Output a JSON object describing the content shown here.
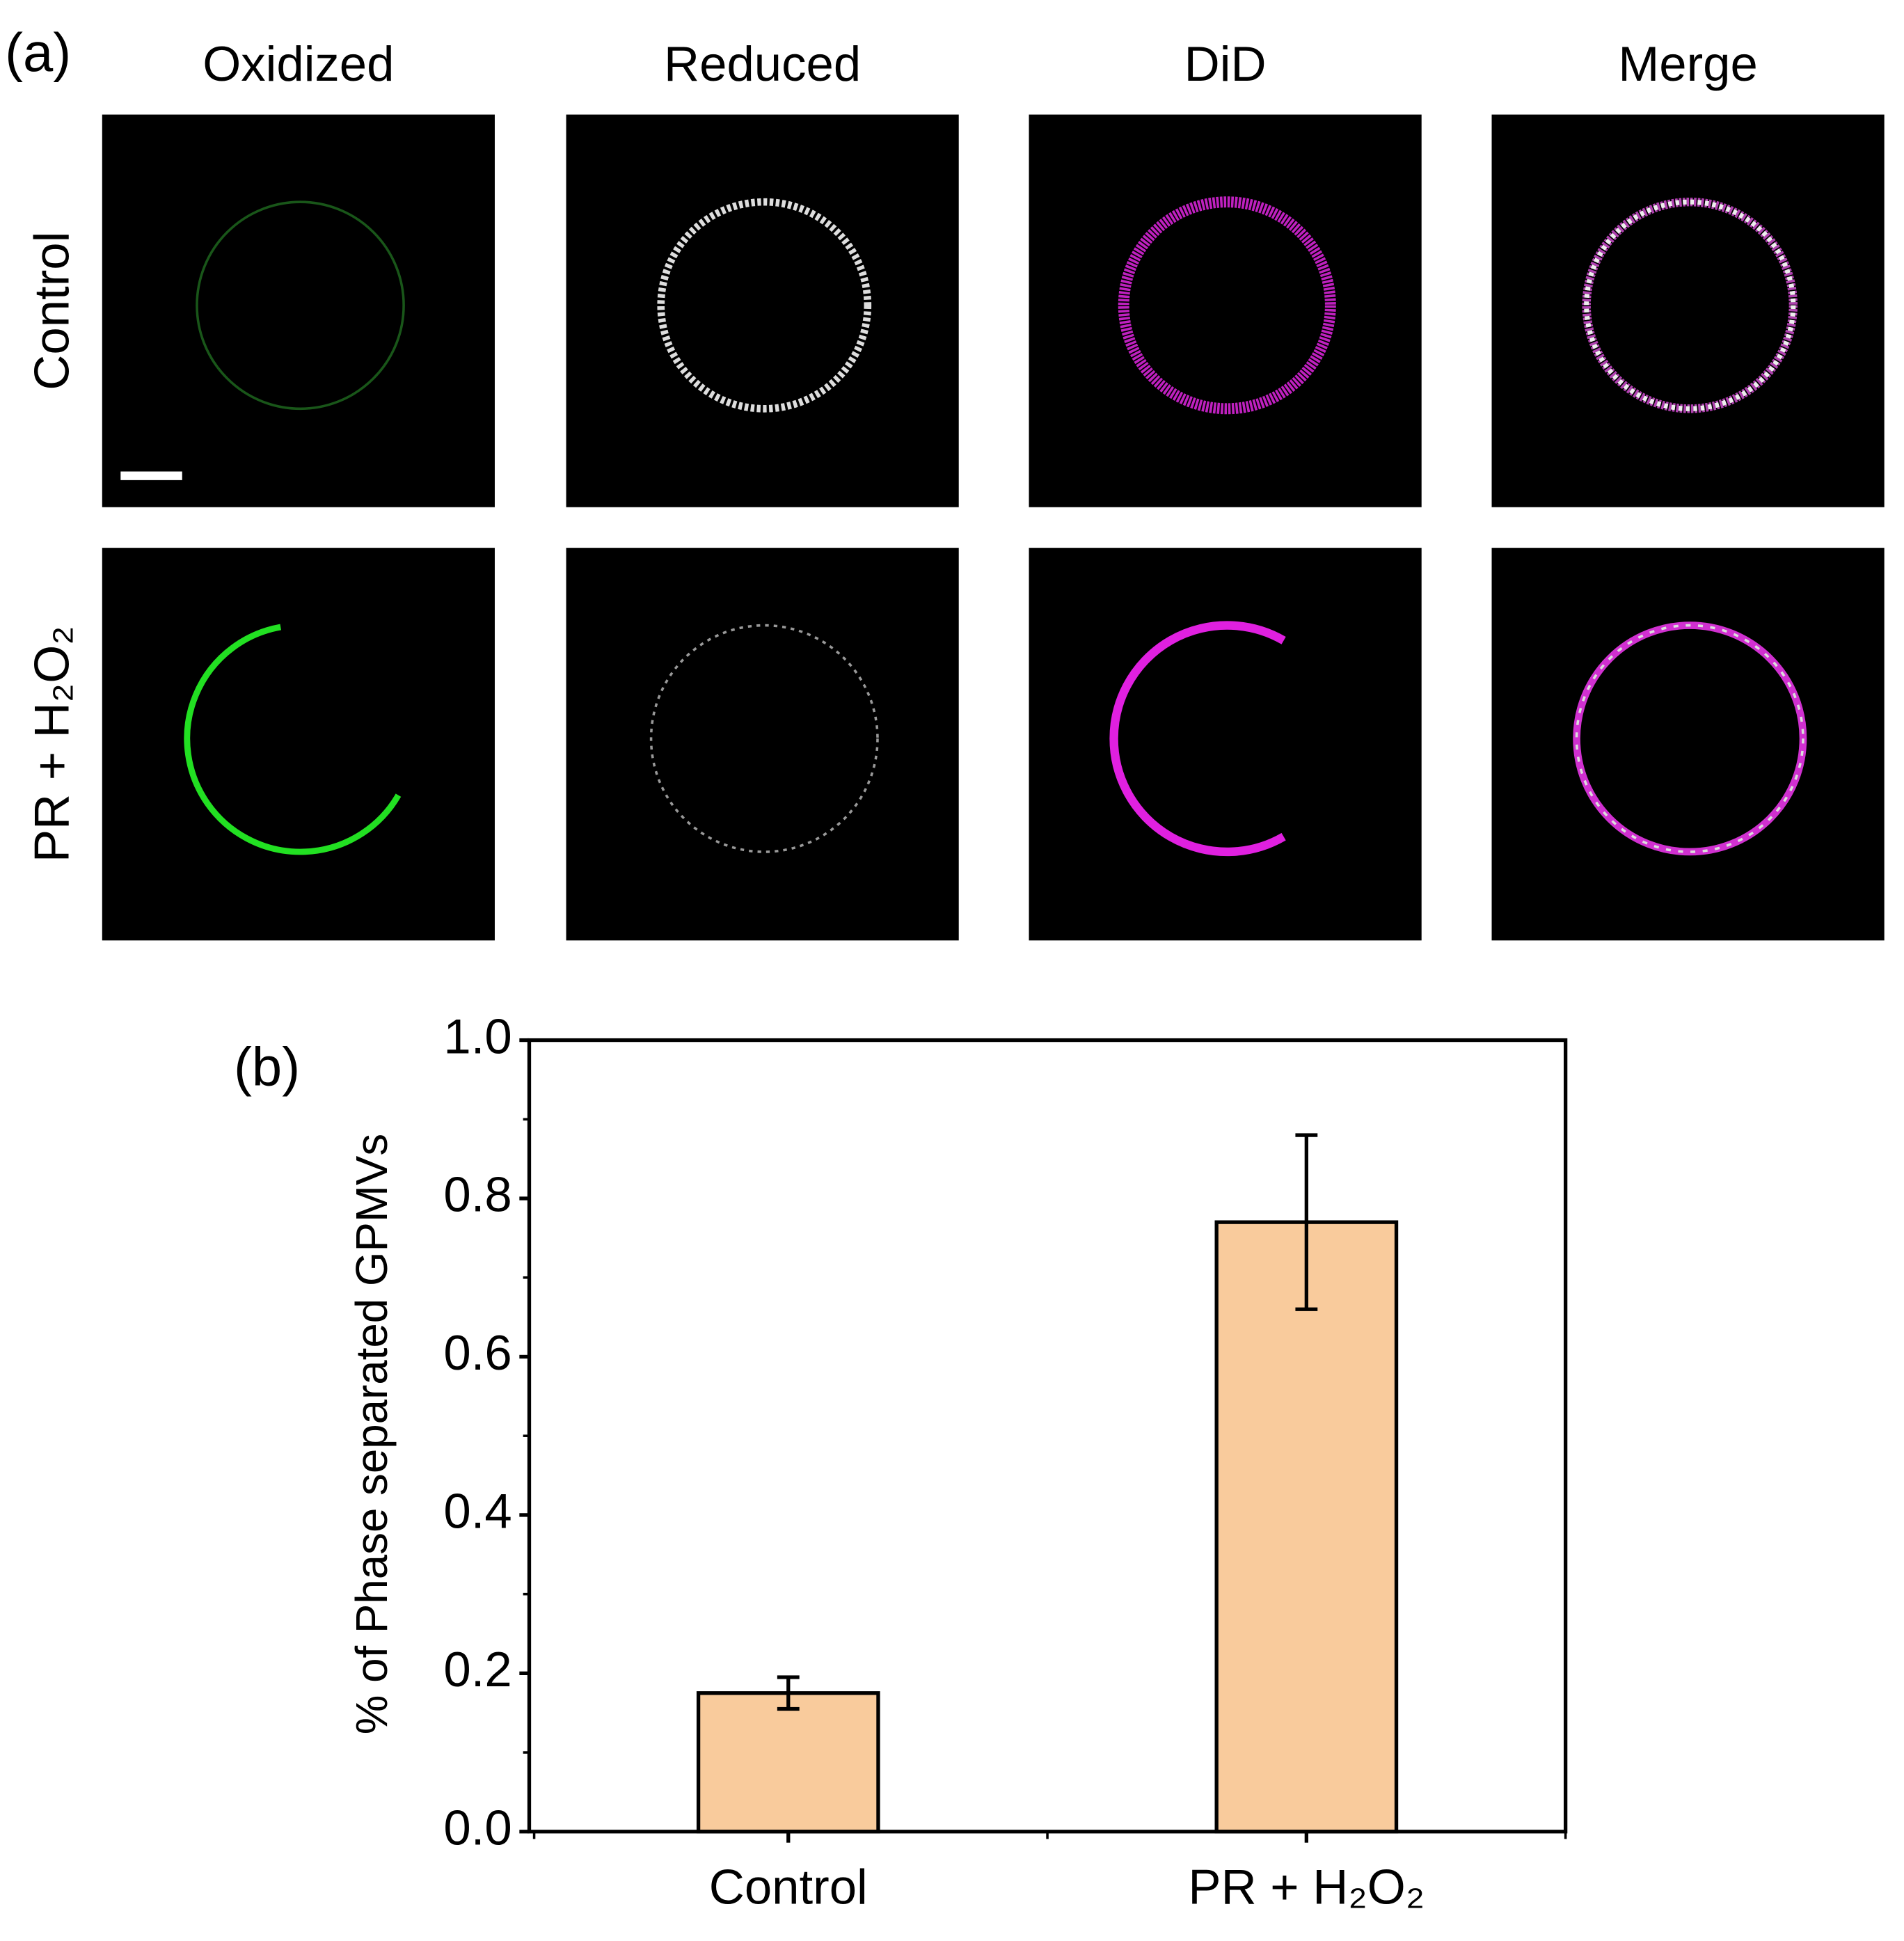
{
  "panel_a": {
    "label": "(a)",
    "columns": [
      "Oxidized",
      "Reduced",
      "DiD",
      "Merge"
    ],
    "rows": [
      "Control",
      "PR + H₂O₂"
    ]
  },
  "chart_data": {
    "type": "bar",
    "panel_label": "(b)",
    "ylabel": "% of Phase separated GPMVs",
    "categories": [
      "Control",
      "PR + H₂O₂"
    ],
    "values": [
      0.175,
      0.77
    ],
    "errors": [
      0.02,
      0.11
    ],
    "color": "#f9cb9c",
    "ylim": [
      0,
      1.0
    ],
    "yticks": [
      {
        "value": 0,
        "label": "0.0"
      },
      0.2,
      0.4,
      0.6,
      0.8,
      {
        "value": 1.0,
        "label": "1.0"
      }
    ],
    "minor_yticks": [
      0.1,
      0.3,
      0.5,
      0.7,
      0.9
    ]
  }
}
